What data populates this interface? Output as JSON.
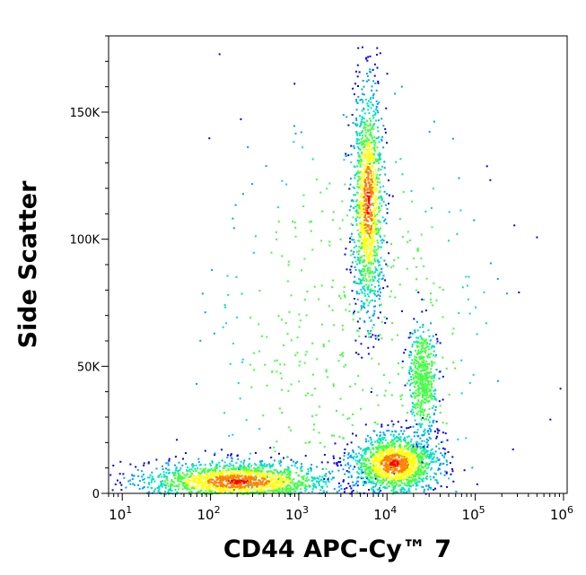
{
  "chart_data": {
    "type": "scatter",
    "style": "flow-cytometry pseudocolor density dot plot",
    "xlabel": "CD44 APC-Cy™ 7",
    "ylabel": "Side Scatter",
    "x_scale": "log",
    "y_scale": "linear",
    "xlim": [
      7,
      1100000
    ],
    "ylim": [
      0,
      180000
    ],
    "x_ticks": [
      {
        "value": 10,
        "base": "10",
        "exp": "1"
      },
      {
        "value": 100,
        "base": "10",
        "exp": "2"
      },
      {
        "value": 1000,
        "base": "10",
        "exp": "3"
      },
      {
        "value": 10000,
        "base": "10",
        "exp": "4"
      },
      {
        "value": 100000,
        "base": "10",
        "exp": "5"
      },
      {
        "value": 1000000,
        "base": "10",
        "exp": "6"
      }
    ],
    "y_ticks": [
      {
        "value": 0,
        "label": "0"
      },
      {
        "value": 50000,
        "label": "50K"
      },
      {
        "value": 100000,
        "label": "100K"
      },
      {
        "value": 150000,
        "label": "150K"
      }
    ],
    "grid": false,
    "legend": "none",
    "colors": {
      "density_scale": [
        "#0000ff",
        "#00a0ff",
        "#00e0c0",
        "#40ff40",
        "#ffff00",
        "#ff8000",
        "#ff0000"
      ],
      "frame": "#000000"
    },
    "populations": [
      {
        "x_center": 200,
        "x_spread_decades": 0.55,
        "y_center": 5000,
        "y_spread": 4000,
        "weight": 1700
      },
      {
        "x_center": 12000,
        "x_spread_decades": 0.25,
        "y_center": 12000,
        "y_spread": 6000,
        "weight": 1400
      },
      {
        "x_center": 6000,
        "x_spread_decades": 0.09,
        "y_center": 115000,
        "y_spread": 22000,
        "weight": 1200
      },
      {
        "x_center": 25000,
        "x_spread_decades": 0.08,
        "y_center": 45000,
        "y_spread": 11000,
        "weight": 500
      },
      {
        "x_center": 4000,
        "x_spread_decades": 0.8,
        "y_center": 60000,
        "y_spread": 45000,
        "weight": 500
      }
    ]
  }
}
